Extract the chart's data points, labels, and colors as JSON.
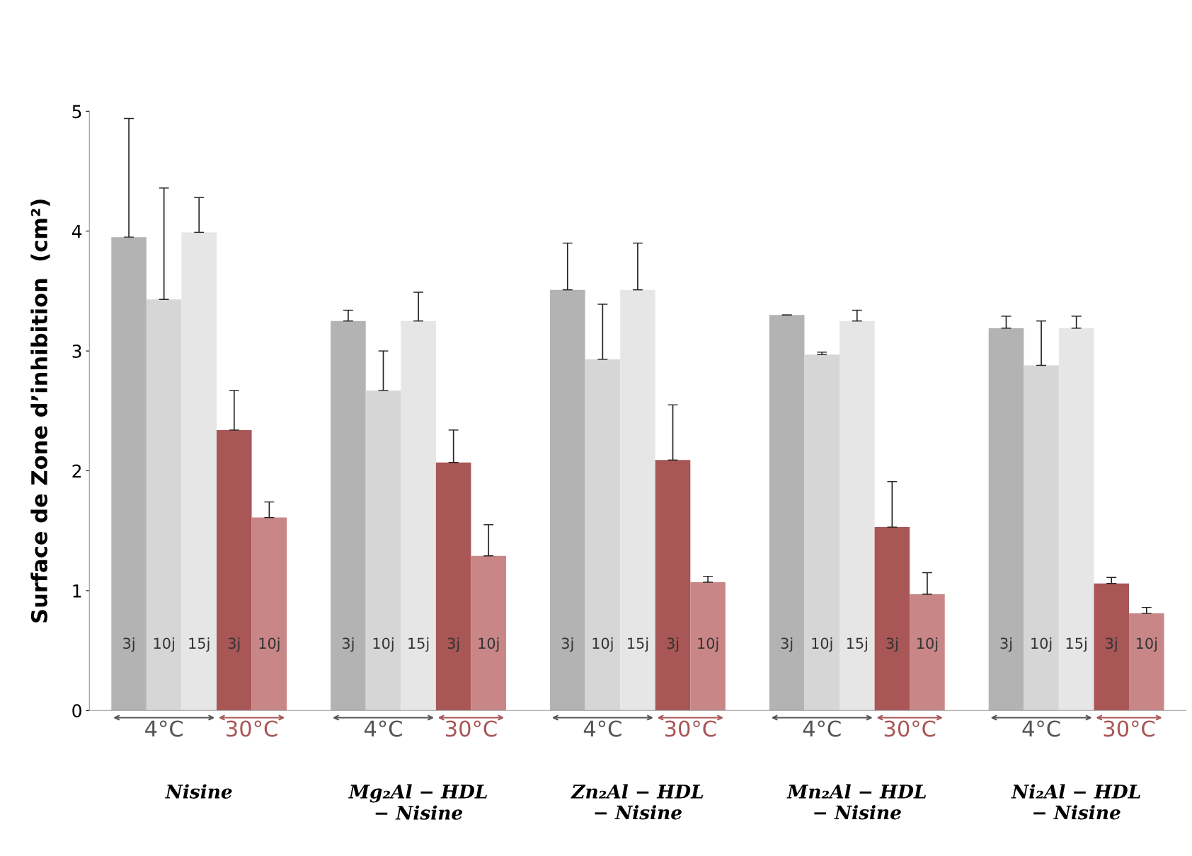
{
  "chart_data": {
    "type": "bar",
    "ylabel": "Surface de Zone d’inhibition  (cm²)",
    "categories": [
      "Nisine",
      "Mg₂Al − HDL\n− Nisine",
      "Zn₂Al − HDL\n− Nisine",
      "Mn₂Al − HDL\n− Nisine",
      "Ni₂Al − HDL\n− Nisine"
    ],
    "series": [
      {
        "name": "3j",
        "color": "#b3b3b3",
        "values": [
          3.95,
          3.25,
          3.51,
          3.3,
          3.19
        ],
        "errors": [
          [
            3.95,
            4.94
          ],
          [
            3.25,
            3.34
          ],
          [
            3.51,
            3.9
          ],
          [
            3.3,
            3.3
          ],
          [
            3.19,
            3.29
          ]
        ]
      },
      {
        "name": "10j",
        "color": "#d6d6d6",
        "values": [
          3.43,
          2.67,
          2.93,
          2.97,
          2.88
        ],
        "errors": [
          [
            3.43,
            4.36
          ],
          [
            2.67,
            3.0
          ],
          [
            2.93,
            3.39
          ],
          [
            2.97,
            2.99
          ],
          [
            2.88,
            3.25
          ]
        ]
      },
      {
        "name": "15j",
        "color": "#e6e6e6",
        "values": [
          3.99,
          3.25,
          3.51,
          3.25,
          3.19
        ],
        "errors": [
          [
            3.99,
            4.28
          ],
          [
            3.25,
            3.49
          ],
          [
            3.51,
            3.9
          ],
          [
            3.25,
            3.34
          ],
          [
            3.19,
            3.29
          ]
        ]
      },
      {
        "name": "3j",
        "color": "#a85656",
        "values": [
          2.34,
          2.07,
          2.09,
          1.53,
          1.06
        ],
        "errors": [
          [
            2.34,
            2.67
          ],
          [
            2.07,
            2.34
          ],
          [
            2.09,
            2.55
          ],
          [
            1.53,
            1.91
          ],
          [
            1.06,
            1.11
          ]
        ]
      },
      {
        "name": "10j",
        "color": "#c98686",
        "values": [
          1.61,
          1.29,
          1.07,
          0.97,
          0.81
        ],
        "errors": [
          [
            1.61,
            1.74
          ],
          [
            1.29,
            1.55
          ],
          [
            1.07,
            1.12
          ],
          [
            0.97,
            1.15
          ],
          [
            0.81,
            0.86
          ]
        ]
      }
    ],
    "annotations": [
      "4°C",
      "30°C",
      "4°C",
      "30°C",
      "4°C",
      "30°C",
      "4°C",
      "30°C",
      "4°C",
      "30°C"
    ],
    "ylim": [
      0,
      5
    ],
    "yticks": [
      0,
      1,
      2,
      3,
      4,
      5
    ],
    "grid": false,
    "legend": false
  }
}
